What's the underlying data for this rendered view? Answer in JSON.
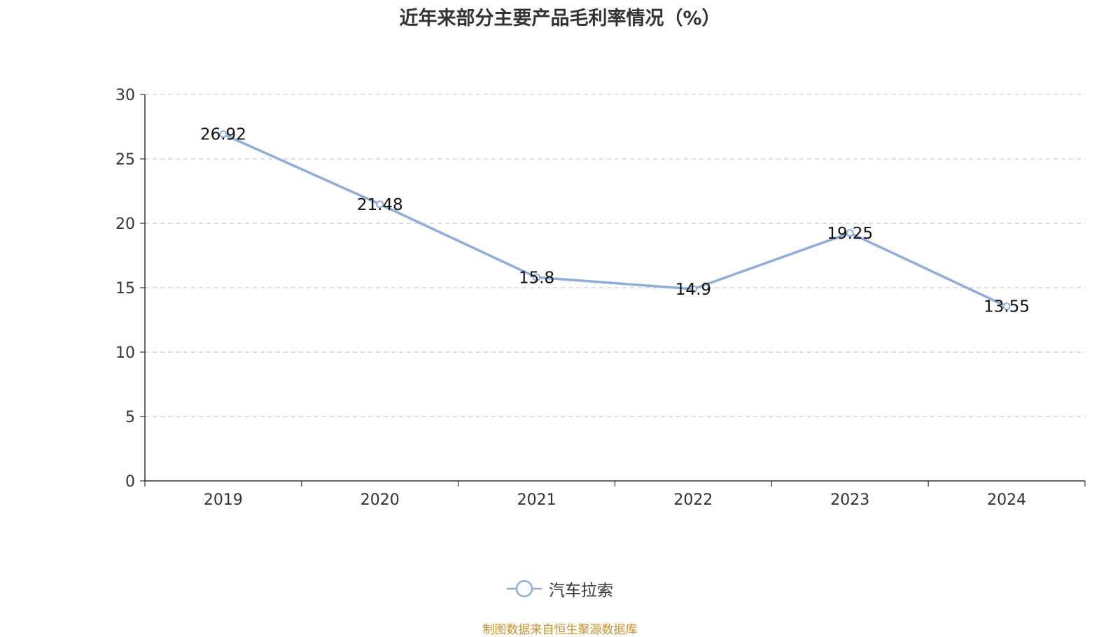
{
  "chart_data": {
    "type": "line",
    "title": "近年来部分主要产品毛利率情况（%）",
    "categories": [
      "2019",
      "2020",
      "2021",
      "2022",
      "2023",
      "2024"
    ],
    "series": [
      {
        "name": "汽车拉索",
        "values": [
          26.92,
          21.48,
          15.8,
          14.9,
          19.25,
          13.55
        ],
        "labels": [
          "26.92",
          "21.48",
          "15.8",
          "14.9",
          "19.25",
          "13.55"
        ],
        "color": "#8eadd9"
      }
    ],
    "ylim": [
      0,
      30
    ],
    "yticks": [
      "0",
      "5",
      "10",
      "15",
      "20",
      "25",
      "30"
    ],
    "xlabel": "",
    "ylabel": "",
    "grid": true,
    "grid_style": "dashed",
    "legend_position": "bottom-center"
  },
  "source_note": "制图数据来自恒生聚源数据库",
  "colors": {
    "line": "#8eadd9",
    "axis": "#333333",
    "grid": "#cccccc",
    "title": "#333333",
    "source": "#c9902c"
  }
}
